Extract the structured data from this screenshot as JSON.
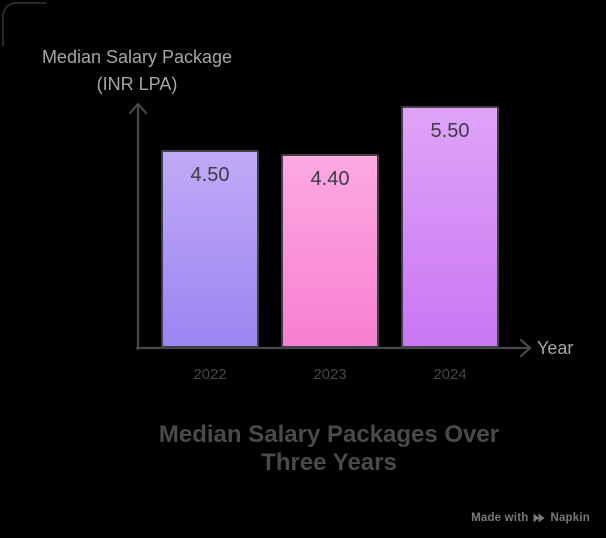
{
  "colors": {
    "background": "#000000",
    "axis": "#47474d",
    "muted_label": "#a6a6a8",
    "title": "#4a4a4a",
    "value_label": "#3d3d43",
    "tick_label": "#45454b",
    "watermark": "#7d787d",
    "bar_border": "#3f3f46",
    "corner_accent": "#2a2a2a"
  },
  "watermark": {
    "prefix": "Made with",
    "brand": "Napkin"
  },
  "chart_data": {
    "type": "bar",
    "title": "Median Salary Packages Over Three Years",
    "title_lines": [
      "Median Salary Packages Over",
      "Three Years"
    ],
    "ylabel": "Median Salary Package (INR LPA)",
    "ylabel_lines": [
      "Median Salary Package",
      "(INR LPA)"
    ],
    "xlabel": "Year",
    "categories": [
      "2022",
      "2023",
      "2024"
    ],
    "values": [
      4.5,
      4.4,
      5.5
    ],
    "value_labels": [
      "4.50",
      "4.40",
      "5.50"
    ],
    "baseline": 0,
    "grid": false,
    "legend": false,
    "bar_colors": [
      {
        "top": "#bfaaf7",
        "bottom": "#9c85f1"
      },
      {
        "top": "#fca9e1",
        "bottom": "#f87fd1"
      },
      {
        "top": "#dfa3f8",
        "bottom": "#ca77f3"
      }
    ]
  }
}
